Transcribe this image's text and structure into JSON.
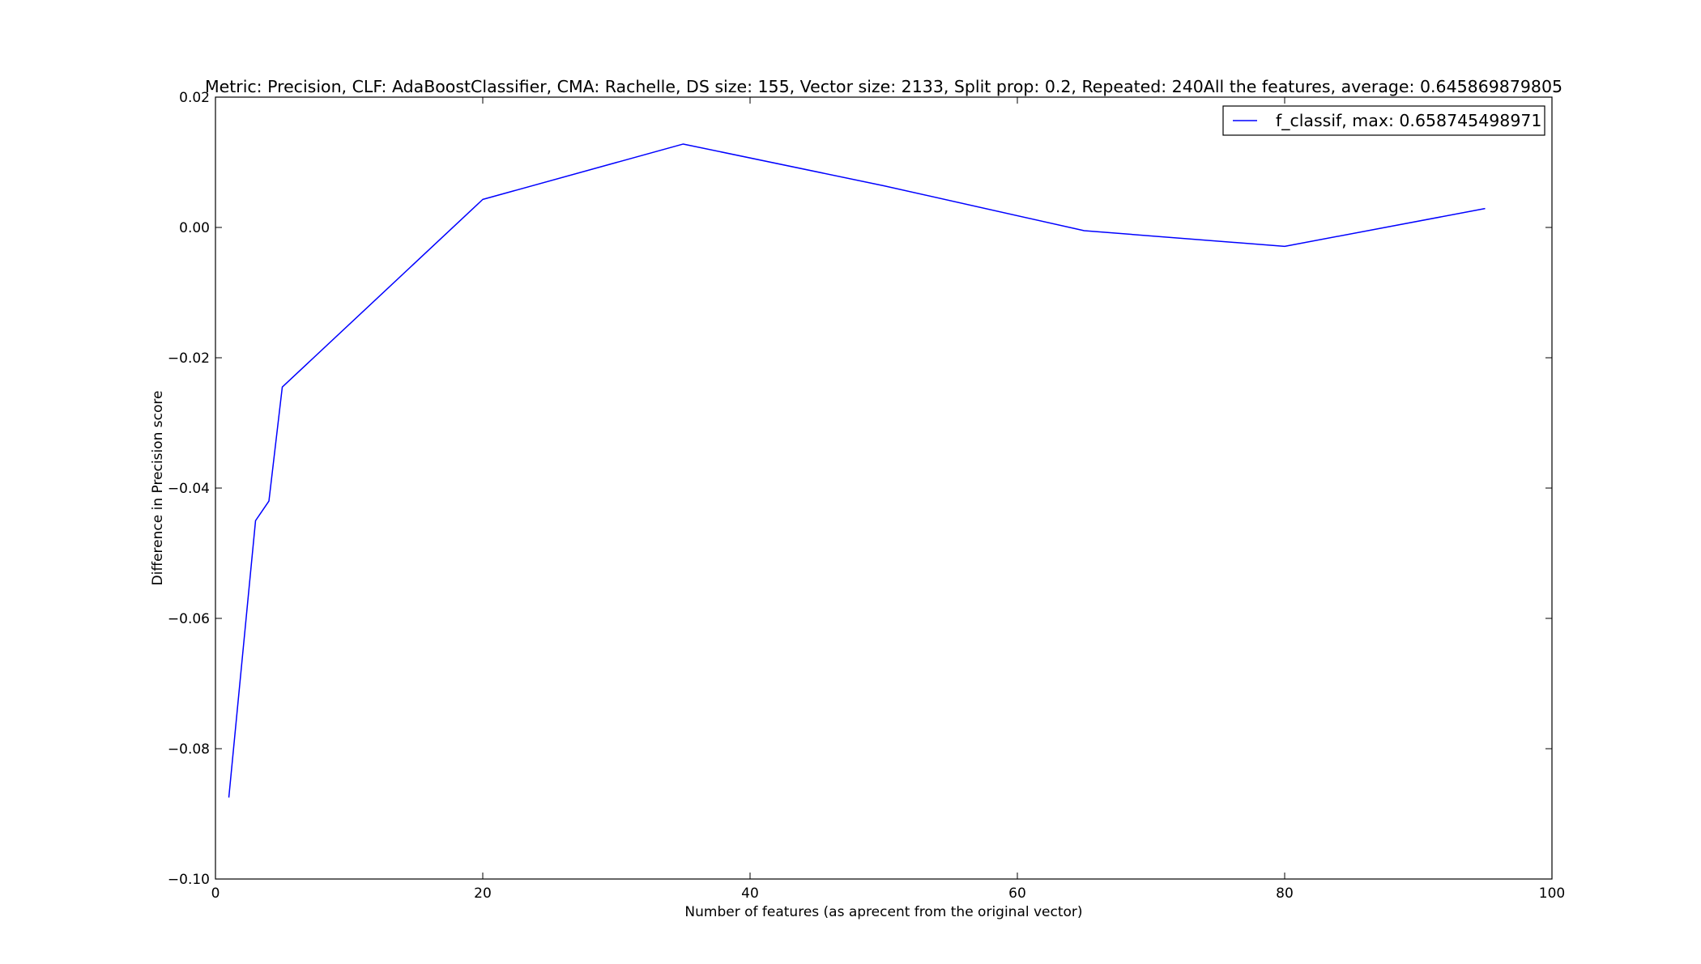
{
  "chart_data": {
    "type": "line",
    "title": "Metric: Precision, CLF: AdaBoostClassifier, CMA: Rachelle, DS size: 155, Vector size: 2133, Split prop: 0.2, Repeated: 240All the features, average: 0.645869879805",
    "xlabel": "Number of features (as aprecent from the original vector)",
    "ylabel": "Difference in Precision score",
    "xlim": [
      0,
      100
    ],
    "ylim": [
      -0.1,
      0.02
    ],
    "xticks": [
      0,
      20,
      40,
      60,
      80,
      100
    ],
    "xtick_labels": [
      "0",
      "20",
      "40",
      "60",
      "80",
      "100"
    ],
    "yticks": [
      -0.1,
      -0.08,
      -0.06,
      -0.04,
      -0.02,
      0.0,
      0.02
    ],
    "ytick_labels": [
      "−0.10",
      "−0.08",
      "−0.06",
      "−0.04",
      "−0.02",
      "0.00",
      "0.02"
    ],
    "grid": false,
    "legend_position": "top-right",
    "series": [
      {
        "name": "f_classif, max: 0.658745498971",
        "color": "#0000ff",
        "x": [
          1,
          3,
          4,
          5,
          20,
          35,
          50,
          65,
          80,
          95
        ],
        "y": [
          -0.0875,
          -0.045,
          -0.042,
          -0.0245,
          0.0043,
          0.0128,
          0.0064,
          -0.0005,
          -0.0029,
          0.0029
        ]
      }
    ]
  }
}
